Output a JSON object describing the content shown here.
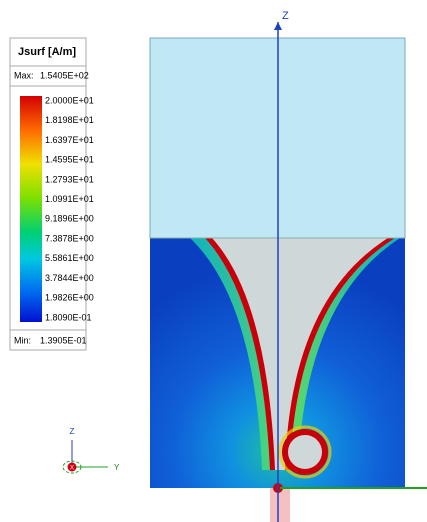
{
  "legend": {
    "title": "Jsurf [A/m]",
    "max_label": "Max:",
    "max_value": "1.5405E+02",
    "labels": [
      "2.0000E+01",
      "1.8198E+01",
      "1.6397E+01",
      "1.4595E+01",
      "1.2793E+01",
      "1.0991E+01",
      "9.1896E+00",
      "7.3878E+00",
      "5.5861E+00",
      "3.7844E+00",
      "1.9826E+00",
      "1.8090E-01"
    ],
    "min_label": "Min:",
    "min_value": "1.3905E-01"
  },
  "axis": {
    "z": "Z"
  },
  "triad": {
    "z": "Z",
    "x": "X",
    "y": "Y"
  }
}
